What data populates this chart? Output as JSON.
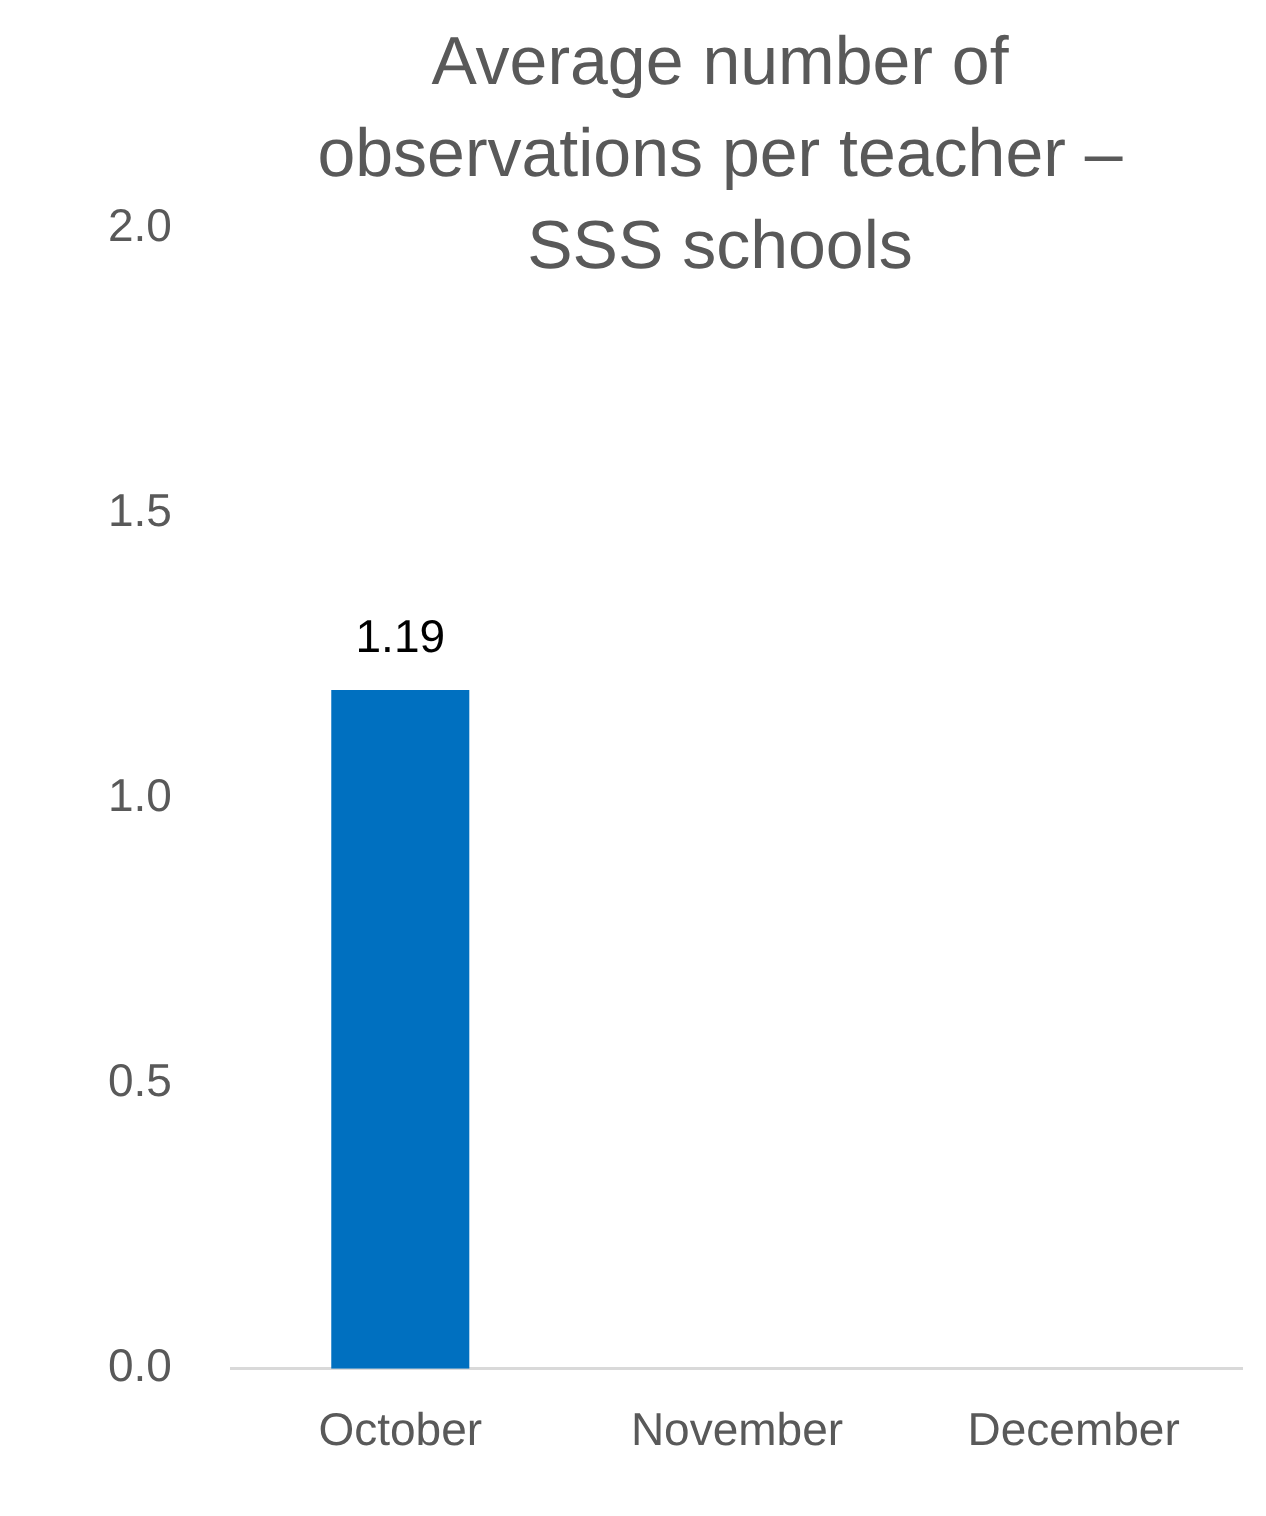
{
  "chart_data": {
    "type": "bar",
    "title": "Average number of observations per teacher – SSS schools",
    "categories": [
      "October",
      "November",
      "December"
    ],
    "values": [
      1.19,
      null,
      null
    ],
    "color": "#0070c0",
    "ylim": [
      0,
      2
    ],
    "yticks": [
      {
        "value": 0,
        "label": "0.0"
      },
      {
        "value": 0.5,
        "label": "0.5"
      },
      {
        "value": 1,
        "label": "1.0"
      },
      {
        "value": 1.5,
        "label": "1.5"
      },
      {
        "value": 2,
        "label": "2.0"
      }
    ],
    "grid": false,
    "legend": false,
    "data_labels": true
  }
}
